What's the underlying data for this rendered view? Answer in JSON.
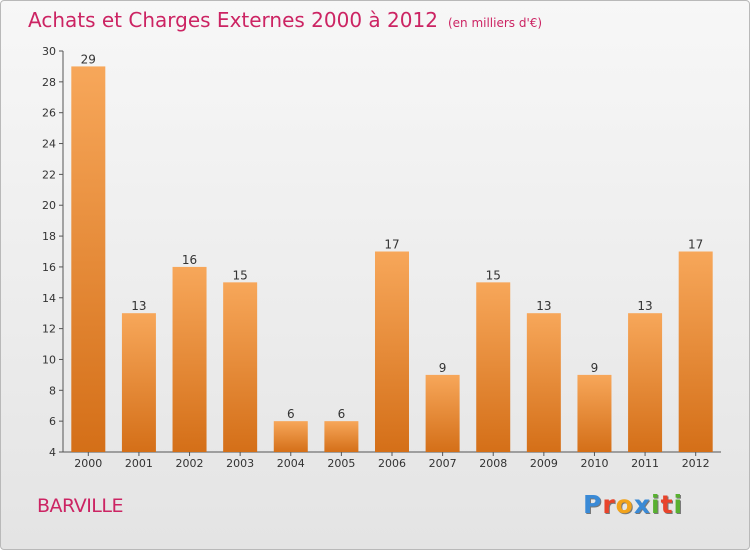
{
  "title": "Achats et Charges Externes 2000 à 2012",
  "unit": "(en milliers d'€)",
  "town": "BARVILLE",
  "brand": "Proxiti",
  "colors": {
    "title": "#cc2463",
    "bar_top": "#f7a75a",
    "bar_bottom": "#d46f18",
    "brand_letters": [
      "#3a8ad6",
      "#e8442b",
      "#f2a31b",
      "#3a8ad6",
      "#58b030",
      "#e8442b",
      "#58b030"
    ]
  },
  "chart_data": {
    "type": "bar",
    "title": "Achats et Charges Externes 2000 à 2012",
    "subtitle": "(en milliers d'€)",
    "categories": [
      "2000",
      "2001",
      "2002",
      "2003",
      "2004",
      "2005",
      "2006",
      "2007",
      "2008",
      "2009",
      "2010",
      "2011",
      "2012"
    ],
    "values": [
      29,
      13,
      16,
      15,
      6,
      6,
      17,
      9,
      15,
      13,
      9,
      13,
      17
    ],
    "ylim": [
      4,
      30
    ],
    "yticks": [
      4,
      6,
      8,
      10,
      12,
      14,
      16,
      18,
      20,
      22,
      24,
      26,
      28,
      30
    ],
    "grid": false,
    "data_labels": true
  }
}
